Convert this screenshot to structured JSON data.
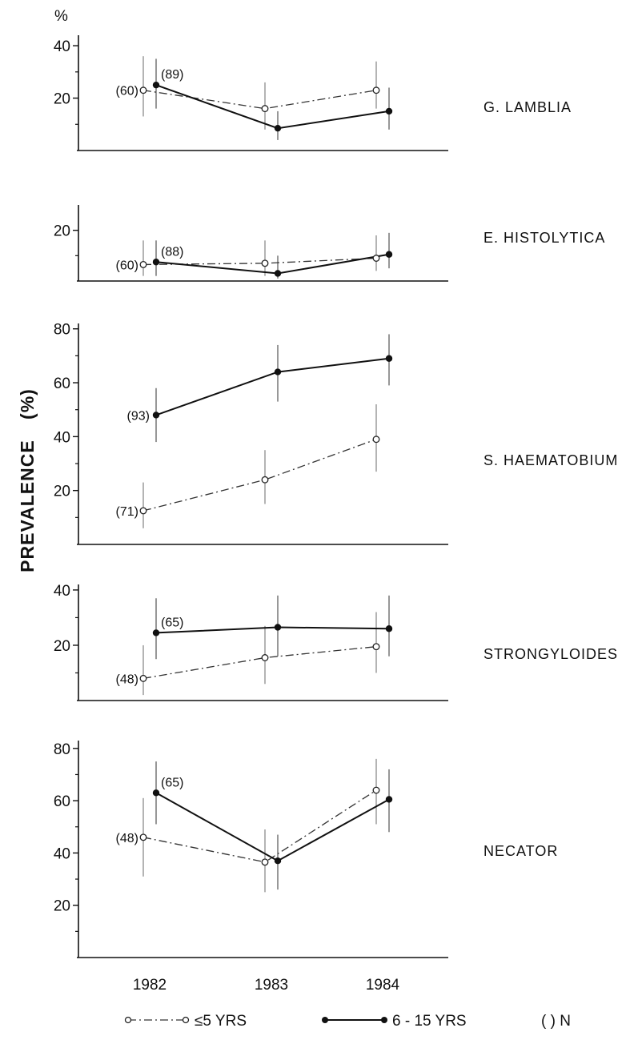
{
  "figure": {
    "unit_label": "%",
    "ylabel_text": "PREVALENCE",
    "ylabel_unit": "(%)"
  },
  "legend": {
    "young_label": "≤5 YRS",
    "old_label": "6 - 15 YRS",
    "n_label": "( ) N"
  },
  "chart_data": [
    {
      "type": "line",
      "panel": "G. LAMBLIA",
      "x": [
        "1982",
        "1983",
        "1984"
      ],
      "ylim": [
        0,
        44
      ],
      "yticks": [
        20,
        40
      ],
      "series": [
        {
          "name": "≤5 YRS",
          "values": [
            23,
            16,
            23
          ],
          "err": [
            [
              13,
              36
            ],
            [
              8,
              26
            ],
            [
              16,
              34
            ]
          ]
        },
        {
          "name": "6 - 15 YRS",
          "values": [
            25,
            8.5,
            15
          ],
          "err": [
            [
              16,
              35
            ],
            [
              4,
              15
            ],
            [
              8,
              24
            ]
          ]
        }
      ],
      "annotations": [
        {
          "series": "≤5 YRS",
          "x": "1982",
          "text": "(60)"
        },
        {
          "series": "6 - 15 YRS",
          "x": "1982",
          "text": "(89)"
        }
      ]
    },
    {
      "type": "line",
      "panel": "E. HISTOLYTICA",
      "x": [
        "1982",
        "1983",
        "1984"
      ],
      "ylim": [
        0,
        30
      ],
      "yticks": [
        20
      ],
      "series": [
        {
          "name": "≤5 YRS",
          "values": [
            6.5,
            7,
            9
          ],
          "err": [
            [
              2,
              16
            ],
            [
              2,
              16
            ],
            [
              4,
              18
            ]
          ]
        },
        {
          "name": "6 - 15 YRS",
          "values": [
            7.5,
            3,
            10.5
          ],
          "err": [
            [
              2,
              16
            ],
            [
              1,
              10
            ],
            [
              5,
              19
            ]
          ]
        }
      ],
      "annotations": [
        {
          "series": "≤5 YRS",
          "x": "1982",
          "text": "(60)"
        },
        {
          "series": "6 - 15 YRS",
          "x": "1982",
          "text": "(88)"
        }
      ]
    },
    {
      "type": "line",
      "panel": "S. HAEMATOBIUM",
      "x": [
        "1982",
        "1983",
        "1984"
      ],
      "ylim": [
        0,
        82
      ],
      "yticks": [
        20,
        40,
        60,
        80
      ],
      "series": [
        {
          "name": "≤5 YRS",
          "values": [
            12.5,
            24,
            39
          ],
          "err": [
            [
              6,
              23
            ],
            [
              15,
              35
            ],
            [
              27,
              52
            ]
          ]
        },
        {
          "name": "6 - 15 YRS",
          "values": [
            48,
            64,
            69
          ],
          "err": [
            [
              38,
              58
            ],
            [
              53,
              74
            ],
            [
              59,
              78
            ]
          ]
        }
      ],
      "annotations": [
        {
          "series": "≤5 YRS",
          "x": "1982",
          "text": "(71)"
        },
        {
          "series": "6 - 15 YRS",
          "x": "1982",
          "text": "(93)"
        }
      ]
    },
    {
      "type": "line",
      "panel": "STRONGYLOIDES",
      "x": [
        "1982",
        "1983",
        "1984"
      ],
      "ylim": [
        0,
        42
      ],
      "yticks": [
        20,
        40
      ],
      "series": [
        {
          "name": "≤5 YRS",
          "values": [
            8,
            15.5,
            19.5
          ],
          "err": [
            [
              2,
              20
            ],
            [
              6,
              27
            ],
            [
              10,
              32
            ]
          ]
        },
        {
          "name": "6 - 15 YRS",
          "values": [
            24.5,
            26.5,
            26
          ],
          "err": [
            [
              15,
              37
            ],
            [
              16,
              38
            ],
            [
              16,
              38
            ]
          ]
        }
      ],
      "annotations": [
        {
          "series": "≤5 YRS",
          "x": "1982",
          "text": "(48)"
        },
        {
          "series": "6 - 15 YRS",
          "x": "1982",
          "text": "(65)"
        }
      ]
    },
    {
      "type": "line",
      "panel": "NECATOR",
      "x": [
        "1982",
        "1983",
        "1984"
      ],
      "ylim": [
        0,
        83
      ],
      "yticks": [
        20,
        40,
        60,
        80
      ],
      "series": [
        {
          "name": "≤5 YRS",
          "values": [
            46,
            36.5,
            64
          ],
          "err": [
            [
              31,
              61
            ],
            [
              25,
              49
            ],
            [
              51,
              76
            ]
          ]
        },
        {
          "name": "6 - 15 YRS",
          "values": [
            63,
            37,
            60.5
          ],
          "err": [
            [
              51,
              75
            ],
            [
              26,
              47
            ],
            [
              48,
              72
            ]
          ]
        }
      ],
      "annotations": [
        {
          "series": "≤5 YRS",
          "x": "1982",
          "text": "(48)"
        },
        {
          "series": "6 - 15 YRS",
          "x": "1982",
          "text": "(65)"
        }
      ]
    }
  ]
}
